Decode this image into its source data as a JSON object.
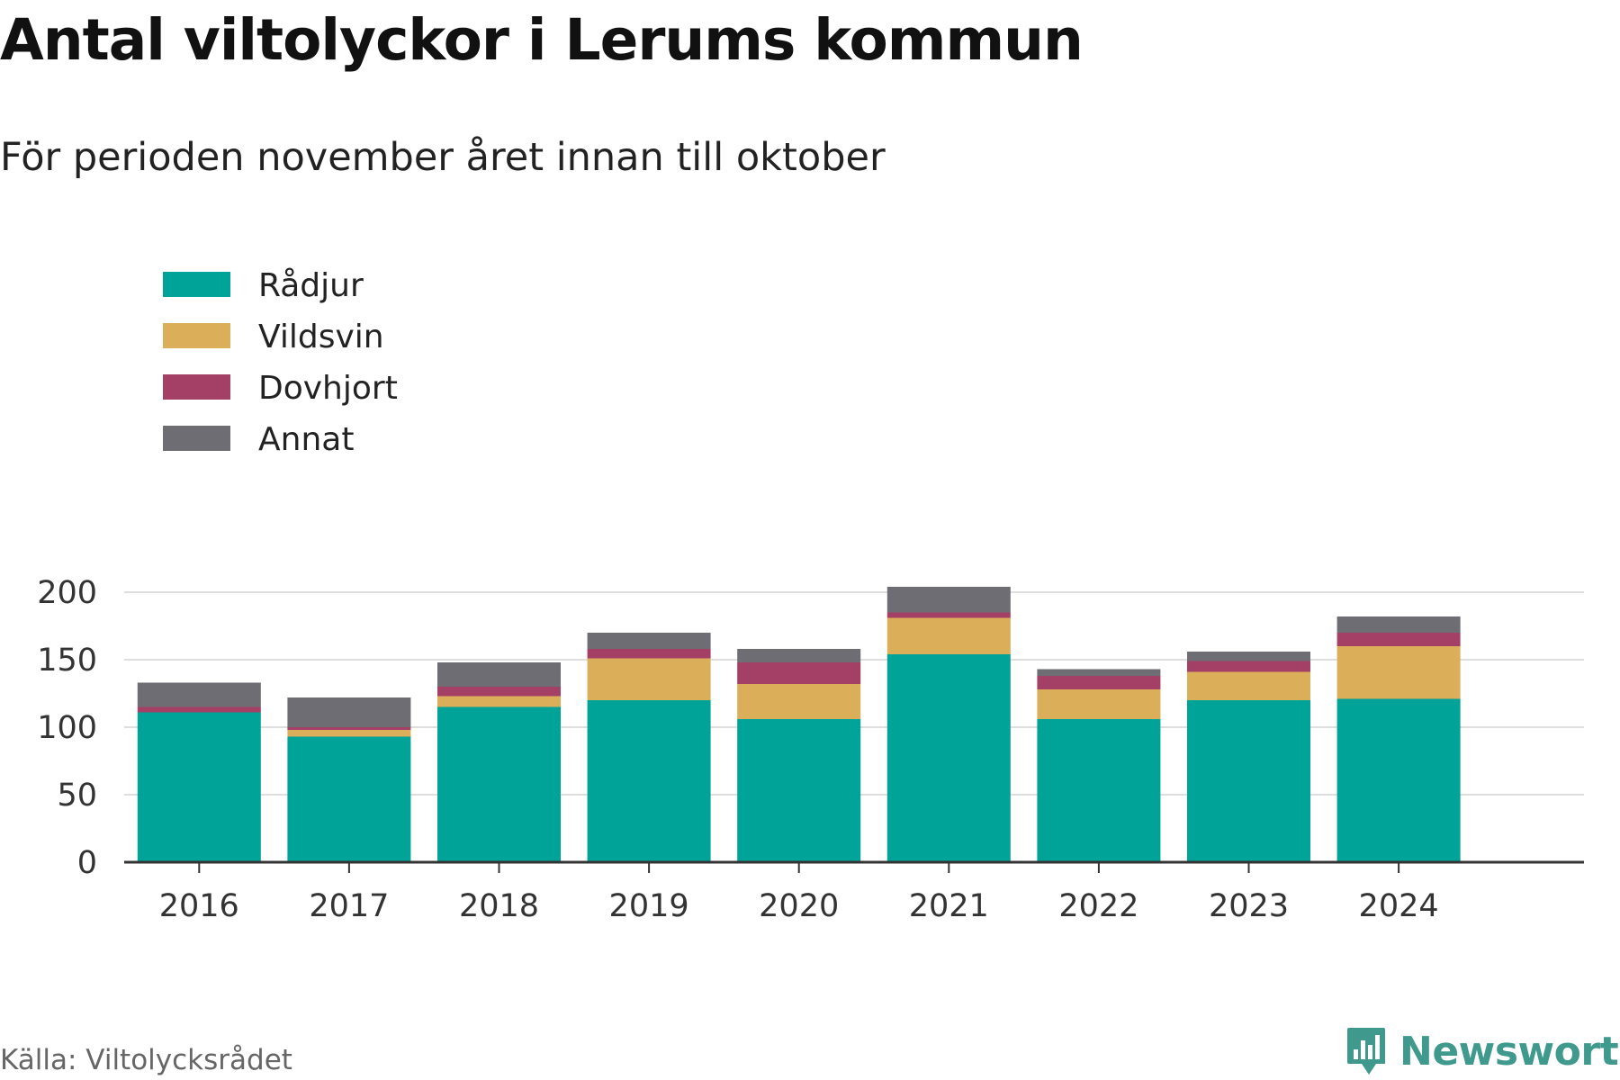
{
  "title": "Antal viltolyckor i Lerums kommun",
  "subtitle": "För perioden november året innan till oktober",
  "source": "Källa: Viltolycksrådet",
  "brand": {
    "name": "Newsworthy",
    "icon": "newsworthy-logo-icon",
    "color": "#3f9a8d"
  },
  "chart_data": {
    "type": "bar",
    "stacked": true,
    "categories": [
      "2016",
      "2017",
      "2018",
      "2019",
      "2020",
      "2021",
      "2022",
      "2023",
      "2024"
    ],
    "series": [
      {
        "name": "Rådjur",
        "color": "#00a398",
        "values": [
          111,
          93,
          115,
          120,
          106,
          154,
          106,
          120,
          121
        ]
      },
      {
        "name": "Vildsvin",
        "color": "#dbae5a",
        "values": [
          0,
          5,
          8,
          31,
          26,
          27,
          22,
          21,
          39
        ]
      },
      {
        "name": "Dovhjort",
        "color": "#a43f66",
        "values": [
          4,
          2,
          7,
          7,
          16,
          4,
          10,
          8,
          10
        ]
      },
      {
        "name": "Annat",
        "color": "#6e6d73",
        "values": [
          18,
          22,
          18,
          12,
          10,
          19,
          5,
          7,
          12
        ]
      }
    ],
    "ylim": [
      0,
      210
    ],
    "yticks": [
      "0",
      "50",
      "100",
      "150",
      "200"
    ],
    "ytick_values": [
      0,
      50,
      100,
      150,
      200
    ],
    "grid": true,
    "legend": "top-left"
  }
}
